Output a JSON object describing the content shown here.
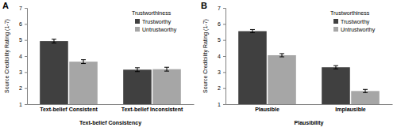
{
  "chart_data": [
    {
      "type": "bar",
      "title": "A",
      "x_label": "Text-belief Consistency",
      "y_label": "Source Credibility Rating (1-7)",
      "legend_title": "Trustworthiness",
      "categories": [
        "Text-belief Consistent",
        "Text-belief Inconsistent"
      ],
      "series": [
        {
          "name": "Trustworthy",
          "color": "#404040",
          "values": [
            4.93,
            3.15
          ],
          "errors": [
            0.12,
            0.12
          ]
        },
        {
          "name": "Untrustworthy",
          "color": "#a6a6a6",
          "values": [
            3.65,
            3.18
          ],
          "errors": [
            0.12,
            0.12
          ]
        }
      ],
      "ylim": [
        1,
        7
      ],
      "yticks": [
        1,
        2,
        3,
        4,
        5,
        6,
        7
      ],
      "grid": false,
      "legend": "upper right"
    },
    {
      "type": "bar",
      "title": "B",
      "x_label": "Plausibility",
      "y_label": "Source Credibility Rating (1-7)",
      "legend_title": "Trustworthiness",
      "categories": [
        "Plausible",
        "Implausible"
      ],
      "series": [
        {
          "name": "Trustworthy",
          "color": "#404040",
          "values": [
            5.55,
            3.3
          ],
          "errors": [
            0.1,
            0.1
          ]
        },
        {
          "name": "Untrustworthy",
          "color": "#a6a6a6",
          "values": [
            4.05,
            1.82
          ],
          "errors": [
            0.1,
            0.1
          ]
        }
      ],
      "ylim": [
        1,
        7
      ],
      "yticks": [
        1,
        2,
        3,
        4,
        5,
        6,
        7
      ],
      "grid": false,
      "legend": "upper right"
    }
  ]
}
